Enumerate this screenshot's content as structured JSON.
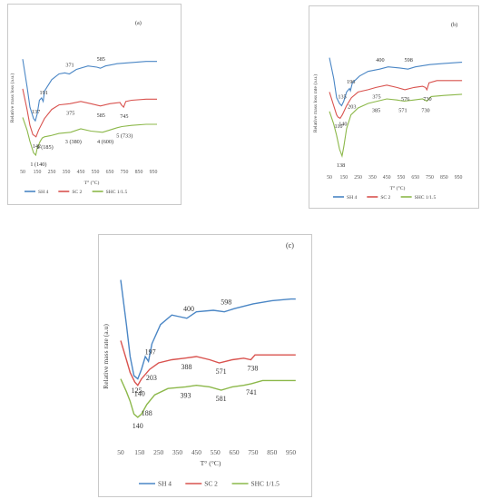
{
  "colors": {
    "SH 4": "#4a86c5",
    "SC 2": "#d9534f",
    "SHC 1/1.5": "#8cb84a"
  },
  "chart_data": [
    {
      "panel_label": "(a)",
      "type": "line",
      "ylabel": "Relative mass loss (a.u.)",
      "xlabel": "T° (°C)",
      "xlim": [
        50,
        1000
      ],
      "xticks": [
        "50",
        "150",
        "250",
        "350",
        "450",
        "550",
        "650",
        "750",
        "850",
        "950"
      ],
      "series": [
        {
          "name": "SH 4",
          "points": [
            [
              50,
              0.84
            ],
            [
              80,
              0.6
            ],
            [
              100,
              0.42
            ],
            [
              125,
              0.32
            ],
            [
              137,
              0.3
            ],
            [
              150,
              0.36
            ],
            [
              165,
              0.48
            ],
            [
              180,
              0.5
            ],
            [
              191,
              0.47
            ],
            [
              200,
              0.56
            ],
            [
              250,
              0.66
            ],
            [
              300,
              0.71
            ],
            [
              340,
              0.72
            ],
            [
              371,
              0.71
            ],
            [
              420,
              0.75
            ],
            [
              500,
              0.78
            ],
            [
              560,
              0.77
            ],
            [
              585,
              0.76
            ],
            [
              620,
              0.78
            ],
            [
              700,
              0.8
            ],
            [
              800,
              0.81
            ],
            [
              900,
              0.82
            ],
            [
              975,
              0.82
            ]
          ]
        },
        {
          "name": "SC 2",
          "points": [
            [
              50,
              0.58
            ],
            [
              80,
              0.4
            ],
            [
              100,
              0.26
            ],
            [
              120,
              0.18
            ],
            [
              142,
              0.16
            ],
            [
              160,
              0.22
            ],
            [
              200,
              0.32
            ],
            [
              250,
              0.4
            ],
            [
              300,
              0.44
            ],
            [
              375,
              0.45
            ],
            [
              450,
              0.47
            ],
            [
              520,
              0.45
            ],
            [
              585,
              0.43
            ],
            [
              650,
              0.45
            ],
            [
              720,
              0.46
            ],
            [
              730,
              0.44
            ],
            [
              745,
              0.42
            ],
            [
              760,
              0.47
            ],
            [
              800,
              0.48
            ],
            [
              900,
              0.49
            ],
            [
              975,
              0.49
            ]
          ]
        },
        {
          "name": "SHC 1/1.5",
          "points": [
            [
              50,
              0.33
            ],
            [
              80,
              0.22
            ],
            [
              100,
              0.12
            ],
            [
              125,
              0.02
            ],
            [
              140,
              0.0
            ],
            [
              150,
              0.06
            ],
            [
              170,
              0.12
            ],
            [
              185,
              0.15
            ],
            [
              200,
              0.16
            ],
            [
              240,
              0.17
            ],
            [
              300,
              0.19
            ],
            [
              380,
              0.2
            ],
            [
              450,
              0.23
            ],
            [
              520,
              0.21
            ],
            [
              600,
              0.2
            ],
            [
              650,
              0.22
            ],
            [
              700,
              0.24
            ],
            [
              733,
              0.25
            ],
            [
              800,
              0.26
            ],
            [
              900,
              0.27
            ],
            [
              975,
              0.27
            ]
          ]
        }
      ],
      "annotations": [
        {
          "text": "371",
          "x": 371,
          "y": 0.71,
          "series": "SH 4"
        },
        {
          "text": "585",
          "x": 585,
          "y": 0.76,
          "series": "SH 4"
        },
        {
          "text": "191",
          "x": 191,
          "y": 0.47,
          "series": "SH 4"
        },
        {
          "text": "137",
          "x": 137,
          "y": 0.3,
          "series": "SH 4"
        },
        {
          "text": "375",
          "x": 375,
          "y": 0.45,
          "series": "SC 2"
        },
        {
          "text": "142",
          "x": 142,
          "y": 0.16,
          "series": "SC 2"
        },
        {
          "text": "585",
          "x": 585,
          "y": 0.43,
          "series": "SC 2"
        },
        {
          "text": "745",
          "x": 745,
          "y": 0.42,
          "series": "SC 2"
        },
        {
          "text": "3 (380)",
          "x": 380,
          "y": 0.2,
          "series": "SHC 1/1.5"
        },
        {
          "text": "2 (185)",
          "x": 185,
          "y": 0.15,
          "series": "SHC 1/1.5"
        },
        {
          "text": "4 (600)",
          "x": 600,
          "y": 0.2,
          "series": "SHC 1/1.5"
        },
        {
          "text": "5 (733)",
          "x": 733,
          "y": 0.25,
          "series": "SHC 1/1.5"
        },
        {
          "text": "1 (140)",
          "x": 140,
          "y": 0.0,
          "series": "SHC 1/1.5"
        }
      ],
      "legend": [
        "SH 4",
        "SC 2",
        "SHC 1/1.5"
      ]
    },
    {
      "panel_label": "(b)",
      "type": "line",
      "ylabel": "Relative mass loss rate (a.u.)",
      "xlabel": "T° (°C)",
      "xlim": [
        50,
        1000
      ],
      "xticks": [
        "50",
        "150",
        "250",
        "350",
        "450",
        "550",
        "650",
        "750",
        "850",
        "950"
      ],
      "series": [
        {
          "name": "SH 4",
          "points": [
            [
              50,
              0.9
            ],
            [
              80,
              0.72
            ],
            [
              100,
              0.55
            ],
            [
              120,
              0.5
            ],
            [
              135,
              0.48
            ],
            [
              150,
              0.52
            ],
            [
              170,
              0.6
            ],
            [
              190,
              0.63
            ],
            [
              196,
              0.61
            ],
            [
              210,
              0.68
            ],
            [
              260,
              0.74
            ],
            [
              320,
              0.78
            ],
            [
              400,
              0.8
            ],
            [
              460,
              0.82
            ],
            [
              540,
              0.81
            ],
            [
              598,
              0.8
            ],
            [
              650,
              0.82
            ],
            [
              750,
              0.84
            ],
            [
              850,
              0.85
            ],
            [
              975,
              0.86
            ]
          ]
        },
        {
          "name": "SC 2",
          "points": [
            [
              50,
              0.6
            ],
            [
              80,
              0.48
            ],
            [
              100,
              0.4
            ],
            [
              110,
              0.38
            ],
            [
              125,
              0.37
            ],
            [
              140,
              0.4
            ],
            [
              170,
              0.48
            ],
            [
              203,
              0.55
            ],
            [
              250,
              0.6
            ],
            [
              320,
              0.62
            ],
            [
              375,
              0.64
            ],
            [
              450,
              0.66
            ],
            [
              520,
              0.64
            ],
            [
              576,
              0.62
            ],
            [
              640,
              0.64
            ],
            [
              700,
              0.65
            ],
            [
              720,
              0.64
            ],
            [
              730,
              0.62
            ],
            [
              745,
              0.68
            ],
            [
              800,
              0.7
            ],
            [
              900,
              0.7
            ],
            [
              975,
              0.7
            ]
          ]
        },
        {
          "name": "SHC 1/1.5",
          "points": [
            [
              50,
              0.43
            ],
            [
              80,
              0.32
            ],
            [
              100,
              0.22
            ],
            [
              120,
              0.1
            ],
            [
              138,
              0.04
            ],
            [
              150,
              0.12
            ],
            [
              170,
              0.28
            ],
            [
              200,
              0.4
            ],
            [
              250,
              0.46
            ],
            [
              320,
              0.5
            ],
            [
              385,
              0.52
            ],
            [
              450,
              0.54
            ],
            [
              520,
              0.53
            ],
            [
              571,
              0.52
            ],
            [
              640,
              0.53
            ],
            [
              700,
              0.54
            ],
            [
              730,
              0.52
            ],
            [
              760,
              0.56
            ],
            [
              850,
              0.57
            ],
            [
              975,
              0.58
            ]
          ]
        }
      ],
      "annotations": [
        {
          "text": "400",
          "x": 400,
          "y": 0.8,
          "series": "SH 4"
        },
        {
          "text": "598",
          "x": 598,
          "y": 0.8,
          "series": "SH 4"
        },
        {
          "text": "196",
          "x": 196,
          "y": 0.61,
          "series": "SH 4"
        },
        {
          "text": "135",
          "x": 135,
          "y": 0.48,
          "series": "SH 4"
        },
        {
          "text": "375",
          "x": 375,
          "y": 0.64,
          "series": "SC 2"
        },
        {
          "text": "576",
          "x": 576,
          "y": 0.62,
          "series": "SC 2"
        },
        {
          "text": "730",
          "x": 730,
          "y": 0.62,
          "series": "SC 2"
        },
        {
          "text": "140",
          "x": 140,
          "y": 0.4,
          "series": "SC 2"
        },
        {
          "text": "110",
          "x": 110,
          "y": 0.38,
          "series": "SC 2"
        },
        {
          "text": "203",
          "x": 203,
          "y": 0.55,
          "series": "SC 2"
        },
        {
          "text": "385",
          "x": 385,
          "y": 0.52,
          "series": "SHC 1/1.5"
        },
        {
          "text": "571",
          "x": 571,
          "y": 0.52,
          "series": "SHC 1/1.5"
        },
        {
          "text": "730",
          "x": 730,
          "y": 0.52,
          "series": "SHC 1/1.5"
        },
        {
          "text": "138",
          "x": 138,
          "y": 0.04,
          "series": "SHC 1/1.5"
        }
      ],
      "legend": [
        "SH 4",
        "SC 2",
        "SHC 1/1.5"
      ]
    },
    {
      "panel_label": "(c)",
      "type": "line",
      "ylabel": "Relative mass rate (a.u)",
      "xlabel": "T° (°C)",
      "xlim": [
        50,
        1000
      ],
      "xticks": [
        "50",
        "150",
        "250",
        "350",
        "450",
        "550",
        "650",
        "750",
        "850",
        "950"
      ],
      "series": [
        {
          "name": "SH 4",
          "points": [
            [
              50,
              0.98
            ],
            [
              80,
              0.7
            ],
            [
              100,
              0.5
            ],
            [
              120,
              0.38
            ],
            [
              140,
              0.36
            ],
            [
              160,
              0.42
            ],
            [
              180,
              0.5
            ],
            [
              197,
              0.47
            ],
            [
              215,
              0.58
            ],
            [
              260,
              0.7
            ],
            [
              320,
              0.76
            ],
            [
              360,
              0.75
            ],
            [
              400,
              0.74
            ],
            [
              450,
              0.78
            ],
            [
              540,
              0.79
            ],
            [
              598,
              0.78
            ],
            [
              650,
              0.8
            ],
            [
              750,
              0.83
            ],
            [
              850,
              0.85
            ],
            [
              950,
              0.86
            ],
            [
              975,
              0.86
            ]
          ]
        },
        {
          "name": "SC 2",
          "points": [
            [
              50,
              0.6
            ],
            [
              80,
              0.48
            ],
            [
              100,
              0.4
            ],
            [
              125,
              0.34
            ],
            [
              140,
              0.32
            ],
            [
              160,
              0.36
            ],
            [
              203,
              0.42
            ],
            [
              250,
              0.46
            ],
            [
              320,
              0.48
            ],
            [
              388,
              0.49
            ],
            [
              450,
              0.5
            ],
            [
              520,
              0.48
            ],
            [
              571,
              0.46
            ],
            [
              640,
              0.48
            ],
            [
              700,
              0.49
            ],
            [
              738,
              0.48
            ],
            [
              760,
              0.51
            ],
            [
              850,
              0.51
            ],
            [
              975,
              0.51
            ]
          ]
        },
        {
          "name": "SHC 1/1.5",
          "points": [
            [
              50,
              0.36
            ],
            [
              80,
              0.28
            ],
            [
              100,
              0.22
            ],
            [
              120,
              0.14
            ],
            [
              140,
              0.12
            ],
            [
              160,
              0.14
            ],
            [
              188,
              0.2
            ],
            [
              230,
              0.26
            ],
            [
              300,
              0.3
            ],
            [
              393,
              0.31
            ],
            [
              450,
              0.32
            ],
            [
              520,
              0.31
            ],
            [
              581,
              0.29
            ],
            [
              640,
              0.31
            ],
            [
              700,
              0.32
            ],
            [
              741,
              0.33
            ],
            [
              800,
              0.35
            ],
            [
              900,
              0.35
            ],
            [
              975,
              0.35
            ]
          ]
        }
      ],
      "annotations": [
        {
          "text": "400",
          "x": 400,
          "y": 0.74,
          "series": "SH 4"
        },
        {
          "text": "598",
          "x": 598,
          "y": 0.78,
          "series": "SH 4"
        },
        {
          "text": "197",
          "x": 197,
          "y": 0.47,
          "series": "SH 4"
        },
        {
          "text": "388",
          "x": 388,
          "y": 0.49,
          "series": "SC 2"
        },
        {
          "text": "571",
          "x": 571,
          "y": 0.46,
          "series": "SC 2"
        },
        {
          "text": "738",
          "x": 738,
          "y": 0.48,
          "series": "SC 2"
        },
        {
          "text": "125",
          "x": 125,
          "y": 0.34,
          "series": "SC 2"
        },
        {
          "text": "203",
          "x": 203,
          "y": 0.42,
          "series": "SC 2"
        },
        {
          "text": "140",
          "x": 140,
          "y": 0.32,
          "series": "SC 2"
        },
        {
          "text": "393",
          "x": 393,
          "y": 0.31,
          "series": "SHC 1/1.5"
        },
        {
          "text": "581",
          "x": 581,
          "y": 0.29,
          "series": "SHC 1/1.5"
        },
        {
          "text": "741",
          "x": 741,
          "y": 0.33,
          "series": "SHC 1/1.5"
        },
        {
          "text": "188",
          "x": 188,
          "y": 0.2,
          "series": "SHC 1/1.5"
        },
        {
          "text": "140",
          "x": 140,
          "y": 0.12,
          "series": "SHC 1/1.5"
        }
      ],
      "legend": [
        "SH 4",
        "SC 2",
        "SHC 1/1.5"
      ]
    }
  ]
}
